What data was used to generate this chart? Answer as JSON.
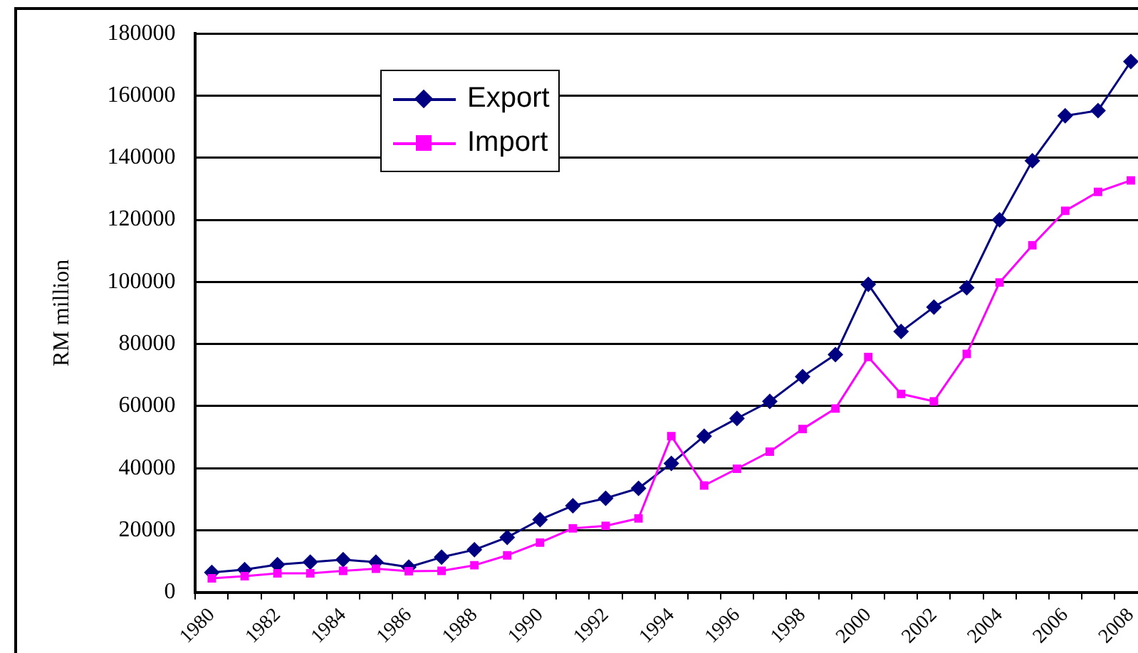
{
  "chart_data": {
    "type": "line",
    "ylabel": "RM million",
    "categories": [
      "1980",
      null,
      "1982",
      null,
      "1984",
      null,
      "1986",
      null,
      "1988",
      null,
      "1990",
      null,
      "1992",
      null,
      "1994",
      null,
      "1996",
      null,
      "1998",
      null,
      "2000",
      null,
      "2002",
      null,
      "2004",
      null,
      "2006",
      null,
      "2008"
    ],
    "series": [
      {
        "name": "Export",
        "color": "#000080",
        "marker": "diamond",
        "values": [
          6400,
          7300,
          8900,
          9700,
          10500,
          9700,
          8100,
          11300,
          13700,
          17700,
          23400,
          27900,
          30300,
          33500,
          41500,
          50300,
          56000,
          61500,
          69500,
          76600,
          99200,
          84000,
          91900,
          98100,
          120000,
          139000,
          153500,
          155200,
          171000
        ]
      },
      {
        "name": "Import",
        "color": "#ff00ff",
        "marker": "square",
        "values": [
          4500,
          5200,
          6100,
          6100,
          6900,
          7600,
          6800,
          6900,
          8700,
          11900,
          16000,
          20600,
          21400,
          23800,
          50300,
          34400,
          39800,
          45300,
          52600,
          59200,
          75800,
          63900,
          61500,
          76800,
          99800,
          111800,
          122900,
          129000,
          132700
        ]
      }
    ],
    "ylim": [
      0,
      180000
    ],
    "yticks": [
      0,
      20000,
      40000,
      60000,
      80000,
      100000,
      120000,
      140000,
      160000,
      180000
    ],
    "grid": "y",
    "legend": "top left",
    "line_style": "solid"
  }
}
